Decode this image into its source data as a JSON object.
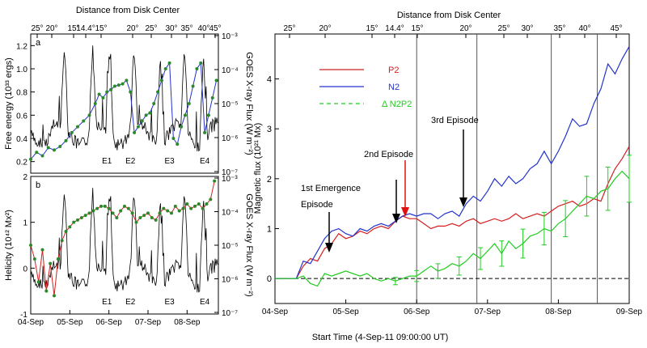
{
  "chart_data": [
    {
      "id": "panel_a",
      "type": "line",
      "panel_label": "a",
      "top_xlabel": "Distance from Disk Center",
      "top_ticks": [
        "25°",
        "20°",
        "15°",
        "14.4°",
        "15°",
        "20°",
        "25°",
        "30°",
        "35°",
        "40°",
        "45°"
      ],
      "bottom_ticks": [
        "04-Sep",
        "05-Sep",
        "06-Sep",
        "07-Sep",
        "08-Sep"
      ],
      "ylabel": "Free energy (10³³ ergs)",
      "yticks": [
        "0.2",
        "0.4",
        "0.6",
        "0.8",
        "1.0",
        "1.2"
      ],
      "ylim": [
        0.1,
        1.3
      ],
      "y2label": "GOES X-ray Flux (W m⁻²)",
      "y2ticks": [
        "10⁻³",
        "10⁻⁴",
        "10⁻⁵",
        "10⁻⁶",
        "10⁻⁷"
      ],
      "y2lim_log": [
        -7,
        -3
      ],
      "events": [
        "E1",
        "E2",
        "E3",
        "E4"
      ],
      "event_days": [
        1.95,
        2.55,
        3.55,
        4.45
      ],
      "xlim_days": [
        0,
        4.8
      ],
      "series": [
        {
          "color": "#2233cc",
          "marker": "#2a8a2a",
          "x": [
            0.0,
            0.15,
            0.3,
            0.45,
            0.6,
            0.75,
            0.9,
            1.05,
            1.2,
            1.35,
            1.5,
            1.65,
            1.75,
            1.85,
            1.95,
            2.05,
            2.15,
            2.25,
            2.35,
            2.45,
            2.55,
            2.65,
            2.75,
            2.85,
            2.95,
            3.05,
            3.15,
            3.25,
            3.35,
            3.45,
            3.55,
            3.65,
            3.75,
            3.85,
            3.95,
            4.05,
            4.15,
            4.25,
            4.35,
            4.45,
            4.55,
            4.65,
            4.75
          ],
          "y": [
            0.22,
            0.28,
            0.25,
            0.32,
            0.3,
            0.33,
            0.38,
            0.45,
            0.5,
            0.55,
            0.6,
            0.7,
            0.78,
            0.75,
            0.8,
            0.82,
            0.85,
            0.86,
            0.87,
            0.9,
            0.8,
            0.45,
            0.5,
            0.55,
            0.6,
            0.62,
            0.7,
            0.8,
            0.9,
            1.0,
            1.05,
            0.4,
            0.35,
            0.5,
            0.6,
            0.7,
            0.85,
            1.0,
            1.05,
            0.45,
            0.6,
            0.75,
            0.9
          ]
        }
      ]
    },
    {
      "id": "panel_b",
      "type": "line",
      "panel_label": "b",
      "bottom_ticks": [
        "04-Sep",
        "05-Sep",
        "06-Sep",
        "07-Sep",
        "08-Sep"
      ],
      "ylabel": "Helicity (10⁴² Mx²)",
      "yticks": [
        "-1",
        "0",
        "1",
        "2"
      ],
      "ylim": [
        -1,
        2
      ],
      "y2label": "GOES X-ray Flux (W m⁻²)",
      "y2ticks": [
        "10⁻³",
        "10⁻⁴",
        "10⁻⁵",
        "10⁻⁶",
        "10⁻⁷"
      ],
      "y2lim_log": [
        -7,
        -3
      ],
      "events": [
        "E1",
        "E2",
        "E3",
        "E4"
      ],
      "event_days": [
        1.95,
        2.55,
        3.55,
        4.45
      ],
      "xlim_days": [
        0,
        4.8
      ],
      "series": [
        {
          "color": "#d42020",
          "marker": "#2a8a2a",
          "x": [
            0.0,
            0.1,
            0.2,
            0.3,
            0.4,
            0.5,
            0.6,
            0.7,
            0.8,
            0.9,
            1.0,
            1.1,
            1.2,
            1.3,
            1.4,
            1.5,
            1.6,
            1.7,
            1.8,
            1.9,
            2.0,
            2.1,
            2.2,
            2.3,
            2.4,
            2.5,
            2.6,
            2.7,
            2.8,
            2.9,
            3.0,
            3.1,
            3.2,
            3.3,
            3.4,
            3.5,
            3.6,
            3.7,
            3.8,
            3.9,
            4.0,
            4.1,
            4.2,
            4.3,
            4.4,
            4.5,
            4.6,
            4.7
          ],
          "y": [
            0.5,
            0.2,
            -0.3,
            0.4,
            -0.5,
            0.1,
            -0.6,
            0.2,
            0.6,
            0.8,
            0.9,
            1.0,
            1.05,
            1.1,
            1.15,
            1.2,
            1.25,
            1.3,
            1.35,
            1.35,
            1.3,
            1.2,
            1.1,
            1.25,
            1.35,
            1.3,
            1.2,
            1.0,
            1.1,
            1.15,
            1.2,
            1.1,
            1.05,
            1.2,
            1.3,
            1.25,
            1.2,
            1.35,
            1.25,
            1.3,
            1.4,
            1.3,
            1.35,
            1.4,
            1.3,
            1.4,
            1.5,
            1.9
          ]
        }
      ]
    },
    {
      "id": "panel_c",
      "type": "line",
      "top_xlabel": "Distance from Disk Center",
      "top_ticks": [
        "25°",
        "20°",
        "15°",
        "14.4°",
        "15°",
        "20°",
        "25°",
        "30°",
        "35°",
        "40°",
        "45°"
      ],
      "bottom_ticks": [
        "04-Sep",
        "05-Sep",
        "06-Sep",
        "07-Sep",
        "08-Sep",
        "09-Sep"
      ],
      "xlabel": "Start Time (4-Sep-11 09:00:00 UT)",
      "ylabel": "Magnetic flux (10²¹ Mx)",
      "yticks": [
        "0",
        "1",
        "2",
        "3",
        "4"
      ],
      "ylim": [
        -0.5,
        4.9
      ],
      "xlim_days": [
        0,
        5.0
      ],
      "vlines_days": [
        2.0,
        2.85,
        3.9,
        4.55
      ],
      "annotations": [
        "1st Emergence",
        "Episode",
        "2nd Episode",
        "3rd Episode"
      ],
      "legend": [
        "P2",
        "N2",
        "Δ N2P2"
      ],
      "series": [
        {
          "name": "P2",
          "color": "#d42020",
          "dash": "none",
          "x": [
            0.0,
            0.3,
            0.4,
            0.5,
            0.6,
            0.7,
            0.8,
            0.9,
            1.0,
            1.1,
            1.2,
            1.3,
            1.4,
            1.5,
            1.6,
            1.7,
            1.8,
            1.9,
            2.0,
            2.1,
            2.2,
            2.3,
            2.4,
            2.5,
            2.6,
            2.7,
            2.8,
            2.9,
            3.0,
            3.1,
            3.2,
            3.3,
            3.4,
            3.5,
            3.6,
            3.7,
            3.8,
            3.9,
            4.0,
            4.1,
            4.2,
            4.3,
            4.4,
            4.5,
            4.6,
            4.7,
            4.8,
            4.9,
            5.0
          ],
          "y": [
            0.0,
            0.0,
            0.25,
            0.4,
            0.35,
            0.6,
            0.7,
            0.9,
            0.8,
            0.85,
            0.95,
            0.9,
            1.0,
            1.05,
            1.0,
            1.15,
            1.25,
            1.2,
            1.2,
            1.1,
            1.0,
            1.05,
            1.05,
            1.1,
            1.05,
            1.15,
            1.2,
            1.1,
            1.15,
            1.2,
            1.15,
            1.2,
            1.3,
            1.2,
            1.25,
            1.3,
            1.25,
            1.35,
            1.45,
            1.5,
            1.55,
            1.45,
            1.5,
            1.6,
            1.55,
            1.9,
            2.2,
            2.4,
            2.65
          ]
        },
        {
          "name": "N2",
          "color": "#2233cc",
          "dash": "none",
          "x": [
            0.0,
            0.3,
            0.4,
            0.5,
            0.6,
            0.7,
            0.8,
            0.9,
            1.0,
            1.1,
            1.2,
            1.3,
            1.4,
            1.5,
            1.6,
            1.7,
            1.8,
            1.9,
            2.0,
            2.1,
            2.2,
            2.3,
            2.4,
            2.5,
            2.6,
            2.7,
            2.8,
            2.9,
            3.0,
            3.1,
            3.2,
            3.3,
            3.4,
            3.5,
            3.6,
            3.7,
            3.8,
            3.9,
            4.0,
            4.1,
            4.2,
            4.3,
            4.4,
            4.5,
            4.6,
            4.7,
            4.8,
            4.9,
            5.0
          ],
          "y": [
            0.0,
            0.0,
            0.35,
            0.3,
            0.55,
            0.8,
            0.95,
            1.0,
            0.9,
            0.85,
            1.0,
            0.95,
            1.05,
            1.1,
            1.05,
            1.15,
            1.25,
            1.3,
            1.25,
            1.3,
            1.3,
            1.2,
            1.3,
            1.35,
            1.25,
            1.5,
            1.65,
            1.55,
            1.75,
            2.0,
            1.85,
            2.05,
            1.9,
            2.0,
            2.2,
            2.3,
            2.55,
            2.3,
            2.55,
            2.85,
            3.2,
            3.05,
            3.1,
            3.5,
            3.8,
            4.3,
            4.1,
            4.4,
            4.65
          ]
        },
        {
          "name": "Δ N2P2",
          "color": "#22cc22",
          "dash": "none",
          "x": [
            0.0,
            0.3,
            0.4,
            0.5,
            0.6,
            0.7,
            0.8,
            0.9,
            1.0,
            1.1,
            1.2,
            1.3,
            1.4,
            1.5,
            1.6,
            1.7,
            1.8,
            1.9,
            2.0,
            2.1,
            2.2,
            2.3,
            2.4,
            2.5,
            2.6,
            2.7,
            2.8,
            2.9,
            3.0,
            3.1,
            3.2,
            3.3,
            3.4,
            3.5,
            3.6,
            3.7,
            3.8,
            3.9,
            4.0,
            4.1,
            4.2,
            4.3,
            4.4,
            4.5,
            4.6,
            4.7,
            4.8,
            4.9,
            5.0
          ],
          "y": [
            0.0,
            0.0,
            0.05,
            -0.1,
            -0.15,
            0.1,
            0.05,
            0.1,
            0.15,
            0.1,
            0.05,
            0.1,
            0.0,
            -0.05,
            0.0,
            -0.05,
            0.0,
            0.05,
            0.05,
            0.15,
            0.25,
            0.15,
            0.2,
            0.3,
            0.25,
            0.35,
            0.5,
            0.4,
            0.55,
            0.7,
            0.5,
            0.75,
            0.6,
            0.7,
            0.85,
            0.9,
            1.0,
            0.95,
            1.1,
            1.2,
            1.35,
            1.5,
            1.65,
            1.6,
            1.75,
            1.8,
            2.0,
            2.15,
            2.0
          ]
        }
      ]
    }
  ]
}
